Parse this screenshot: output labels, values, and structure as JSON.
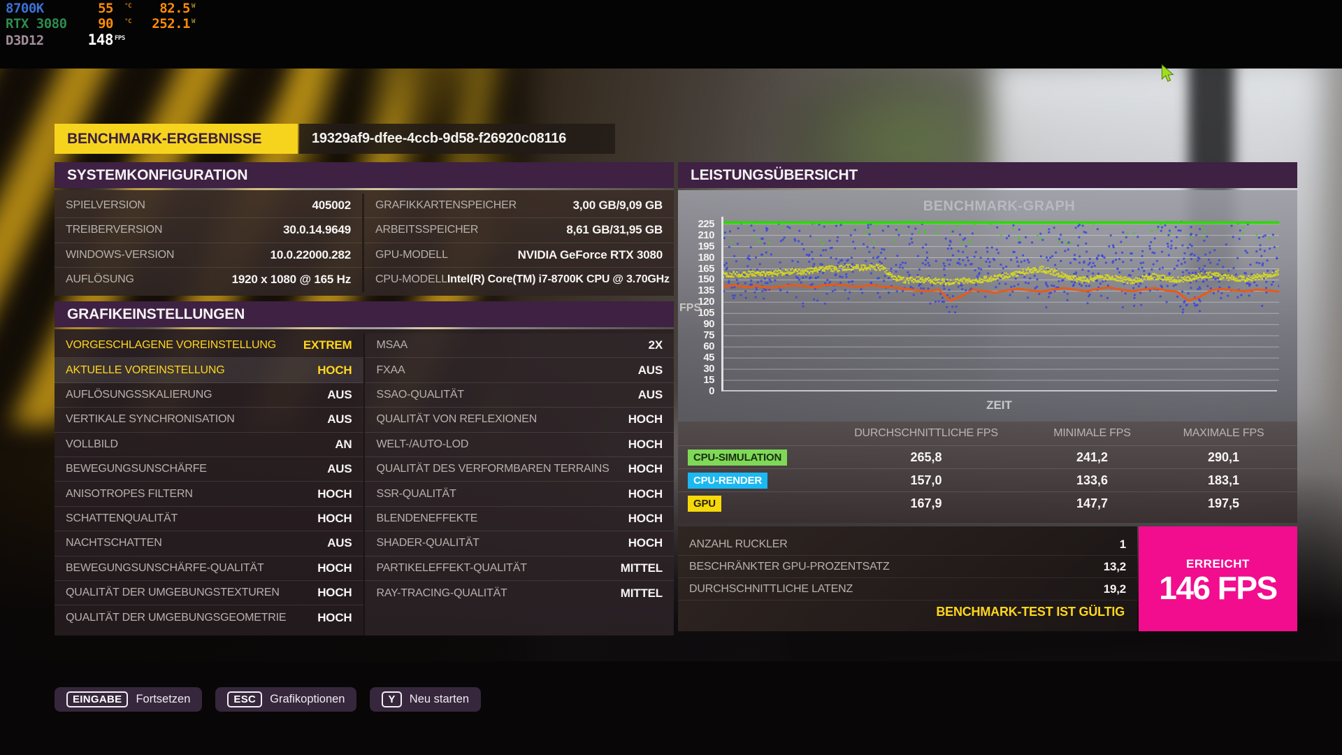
{
  "theme": {
    "accent_yellow": "#f6d41e",
    "header_purple": "#3e2143",
    "achieved_pink": "#f20d8e",
    "valid_yellow": "#ffd61f"
  },
  "overlay": {
    "rows": [
      {
        "name": "8700K",
        "name_color": "#3a72d8",
        "temp": "55",
        "temp_unit": "°C",
        "power": "82.5",
        "power_unit": "W"
      },
      {
        "name": "RTX 3080",
        "name_color": "#2e8c4e",
        "temp": "90",
        "temp_unit": "°C",
        "power": "252.1",
        "power_unit": "W"
      },
      {
        "name": "D3D12",
        "name_color": "#a28d99",
        "fps": "148",
        "fps_unit": "FPS"
      }
    ]
  },
  "header": {
    "title": "BENCHMARK-ERGEBNISSE",
    "session_id": "19329af9-dfee-4ccb-9d58-f26920c08116"
  },
  "system": {
    "title": "SYSTEMKONFIGURATION",
    "left_rows": [
      {
        "label": "SPIELVERSION",
        "value": "405002"
      },
      {
        "label": "TREIBERVERSION",
        "value": "30.0.14.9649"
      },
      {
        "label": "WINDOWS-VERSION",
        "value": "10.0.22000.282"
      },
      {
        "label": "AUFLÖSUNG",
        "value": "1920 x 1080 @ 165 Hz"
      }
    ],
    "right_rows": [
      {
        "label": "GRAFIKKARTENSPEICHER",
        "value": "3,00 GB/9,09 GB"
      },
      {
        "label": "ARBEITSSPEICHER",
        "value": "8,61 GB/31,95 GB"
      },
      {
        "label": "GPU-MODELL",
        "value": "NVIDIA GeForce RTX 3080"
      },
      {
        "label": "CPU-MODELL",
        "value": "Intel(R) Core(TM) i7-8700K CPU @ 3.70GHz"
      }
    ]
  },
  "graphics": {
    "title": "GRAFIKEINSTELLUNGEN",
    "left_rows": [
      {
        "label": "VORGESCHLAGENE VOREINSTELLUNG",
        "value": "EXTREM",
        "accent": true
      },
      {
        "label": "AKTUELLE VOREINSTELLUNG",
        "value": "HOCH",
        "accent": true,
        "highlighted": true
      },
      {
        "label": "AUFLÖSUNGSSKALIERUNG",
        "value": "AUS"
      },
      {
        "label": "VERTIKALE SYNCHRONISATION",
        "value": "AUS"
      },
      {
        "label": "VOLLBILD",
        "value": "AN"
      },
      {
        "label": "BEWEGUNGSUNSCHÄRFE",
        "value": "AUS"
      },
      {
        "label": "ANISOTROPES FILTERN",
        "value": "HOCH"
      },
      {
        "label": "SCHATTENQUALITÄT",
        "value": "HOCH"
      },
      {
        "label": "NACHTSCHATTEN",
        "value": "AUS"
      },
      {
        "label": "BEWEGUNGSUNSCHÄRFE-QUALITÄT",
        "value": "HOCH"
      },
      {
        "label": "QUALITÄT DER UMGEBUNGSTEXTUREN",
        "value": "HOCH"
      },
      {
        "label": "QUALITÄT DER UMGEBUNGSGEOMETRIE",
        "value": "HOCH"
      }
    ],
    "right_rows": [
      {
        "label": "MSAA",
        "value": "2X"
      },
      {
        "label": "FXAA",
        "value": "AUS"
      },
      {
        "label": "SSAO-QUALITÄT",
        "value": "AUS"
      },
      {
        "label": "QUALITÄT VON REFLEXIONEN",
        "value": "HOCH"
      },
      {
        "label": "WELT-/AUTO-LOD",
        "value": "HOCH"
      },
      {
        "label": "QUALITÄT DES VERFORMBAREN TERRAINS",
        "value": "HOCH"
      },
      {
        "label": "SSR-QUALITÄT",
        "value": "HOCH"
      },
      {
        "label": "BLENDENEFFEKTE",
        "value": "HOCH"
      },
      {
        "label": "SHADER-QUALITÄT",
        "value": "HOCH"
      },
      {
        "label": "PARTIKELEFFEKT-QUALITÄT",
        "value": "MITTEL"
      },
      {
        "label": "RAY-TRACING-QUALITÄT",
        "value": "MITTEL"
      }
    ]
  },
  "performance": {
    "title": "LEISTUNGSÜBERSICHT",
    "table": {
      "headers": [
        "DURCHSCHNITTLICHE FPS",
        "MINIMALE FPS",
        "MAXIMALE FPS"
      ],
      "rows": [
        {
          "badge": "CPU-SIMULATION",
          "badge_color": "#7ed957",
          "badge_text_color": "#1b2d12",
          "avg": "265,8",
          "min": "241,2",
          "max": "290,1"
        },
        {
          "badge": "CPU-RENDER",
          "badge_color": "#1cb8f2",
          "badge_text_color": "#ffffff",
          "avg": "157,0",
          "min": "133,6",
          "max": "183,1"
        },
        {
          "badge": "GPU",
          "badge_color": "#f6d90a",
          "badge_text_color": "#2b2408",
          "avg": "167,9",
          "min": "147,7",
          "max": "197,5"
        }
      ]
    },
    "details": {
      "rows": [
        {
          "label": "ANZAHL RUCKLER",
          "value": "1"
        },
        {
          "label": "BESCHRÄNKTER GPU-PROZENTSATZ",
          "value": "13,2"
        },
        {
          "label": "DURCHSCHNITTLICHE LATENZ",
          "value": "19,2"
        }
      ],
      "valid_text": "BENCHMARK-TEST IST GÜLTIG"
    },
    "achieved": {
      "label": "ERREICHT",
      "value": "146 FPS"
    }
  },
  "chart_data": {
    "type": "line",
    "title": "BENCHMARK-GRAPH",
    "xlabel": "ZEIT",
    "ylabel": "FPS",
    "ylim": [
      0,
      235
    ],
    "yticks": [
      225,
      210,
      195,
      180,
      165,
      150,
      135,
      120,
      105,
      90,
      75,
      60,
      45,
      30,
      15,
      0
    ],
    "grid": true,
    "series": [
      {
        "name": "CPU-SIMULATION",
        "type": "line",
        "color": "#2fd60c",
        "width": 4,
        "values": [
          227,
          227
        ]
      },
      {
        "name": "CPU-SIMULATION-SAMPLES",
        "type": "scatter-uniform",
        "color": "#38d60e",
        "count": 60,
        "y_range": [
          198,
          231
        ]
      },
      {
        "name": "CPU-RENDER",
        "type": "scatter",
        "color": "#3b45dd",
        "count": 820,
        "y_range": [
          104,
          230
        ],
        "y_center": 152,
        "dip_centers": [
          0.405,
          0.845
        ]
      },
      {
        "name": "GPU",
        "type": "dot-band",
        "color": "#d8da1c",
        "jitter": 8,
        "values": [
          157,
          158,
          157,
          159,
          158,
          160,
          162,
          161,
          163,
          166,
          165,
          167,
          166,
          168,
          166,
          154,
          149,
          151,
          150,
          148,
          147,
          149,
          148,
          151,
          153,
          156,
          159,
          163,
          165,
          161,
          156,
          152,
          150,
          152,
          154,
          151,
          149,
          152,
          155,
          153,
          150,
          152,
          155,
          157,
          154,
          152,
          151,
          154,
          156,
          161
        ]
      },
      {
        "name": "GESAMT-FPS",
        "type": "line",
        "color": "#e85a17",
        "width": 3,
        "values": [
          141,
          143,
          140,
          142,
          139,
          141,
          143,
          142,
          140,
          143,
          144,
          142,
          141,
          143,
          141,
          140,
          138,
          136,
          135,
          137,
          122,
          128,
          137,
          135,
          133,
          136,
          138,
          136,
          134,
          137,
          139,
          137,
          135,
          138,
          140,
          137,
          135,
          137,
          139,
          136,
          134,
          122,
          127,
          136,
          138,
          136,
          135,
          137,
          136,
          134
        ]
      }
    ]
  },
  "footer": {
    "buttons": [
      {
        "key": "EINGABE",
        "label": "Fortsetzen"
      },
      {
        "key": "ESC",
        "label": "Grafikoptionen"
      },
      {
        "key": "Y",
        "label": "Neu starten"
      }
    ]
  }
}
